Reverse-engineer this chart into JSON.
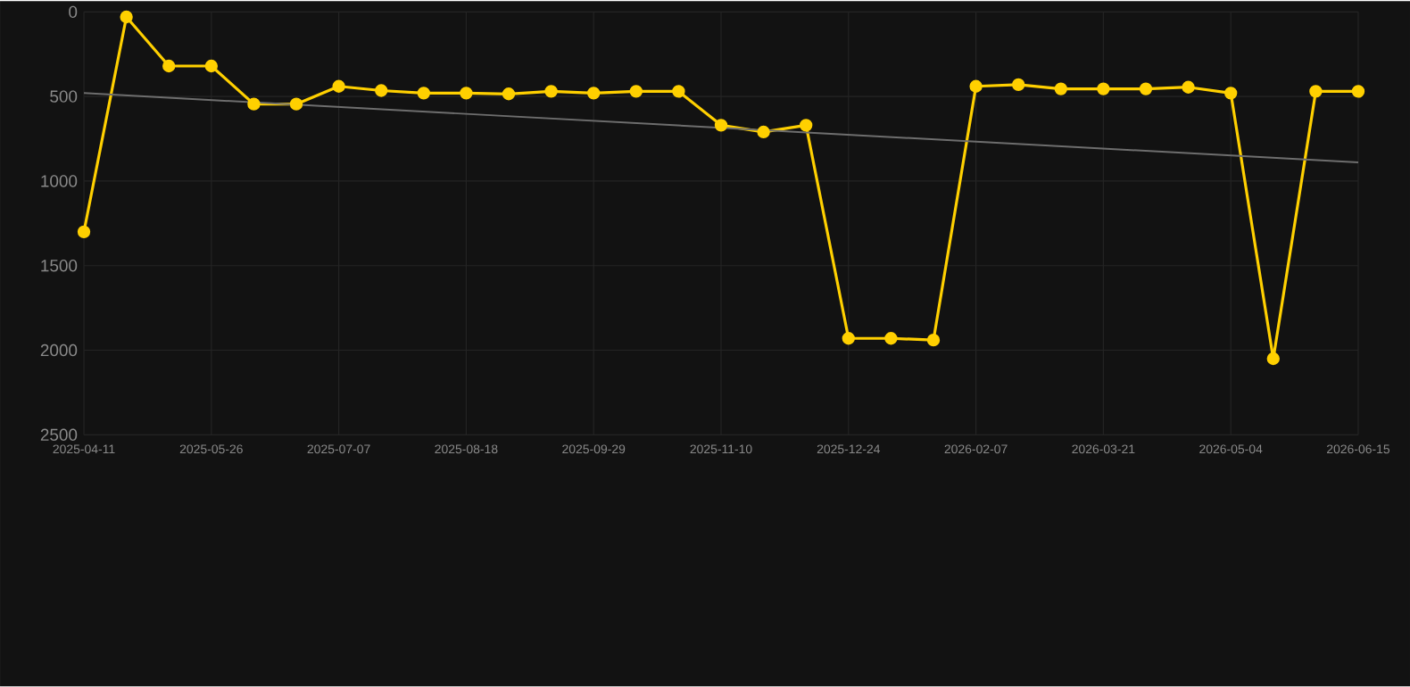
{
  "chart_data": {
    "type": "line",
    "categories": [
      "2025-04-11",
      null,
      null,
      "2025-05-26",
      null,
      null,
      "2025-07-07",
      null,
      null,
      "2025-08-18",
      null,
      null,
      "2025-09-29",
      null,
      null,
      "2025-11-10",
      null,
      null,
      "2025-12-24",
      null,
      null,
      "2026-02-07",
      null,
      null,
      "2026-03-21",
      null,
      null,
      "2026-05-04",
      null,
      null,
      "2026-06-15"
    ],
    "series": [
      {
        "color": "#ffd000",
        "marker": "circle",
        "values": [
          1300,
          30,
          320,
          320,
          545,
          545,
          440,
          465,
          480,
          480,
          485,
          470,
          480,
          470,
          470,
          670,
          710,
          670,
          1930,
          1930,
          1940,
          440,
          430,
          455,
          455,
          455,
          445,
          480,
          2050,
          470,
          470
        ]
      },
      {
        "color": "#6e6e6e",
        "marker": "none",
        "values": [
          480,
          null,
          null,
          null,
          null,
          null,
          null,
          null,
          null,
          null,
          null,
          null,
          null,
          null,
          null,
          null,
          null,
          null,
          null,
          null,
          null,
          null,
          null,
          null,
          null,
          null,
          null,
          null,
          null,
          null,
          890
        ]
      }
    ],
    "ylim": [
      2500,
      0
    ],
    "yticks": [
      0,
      500,
      1000,
      1500,
      2000,
      2500
    ],
    "grid": true
  }
}
